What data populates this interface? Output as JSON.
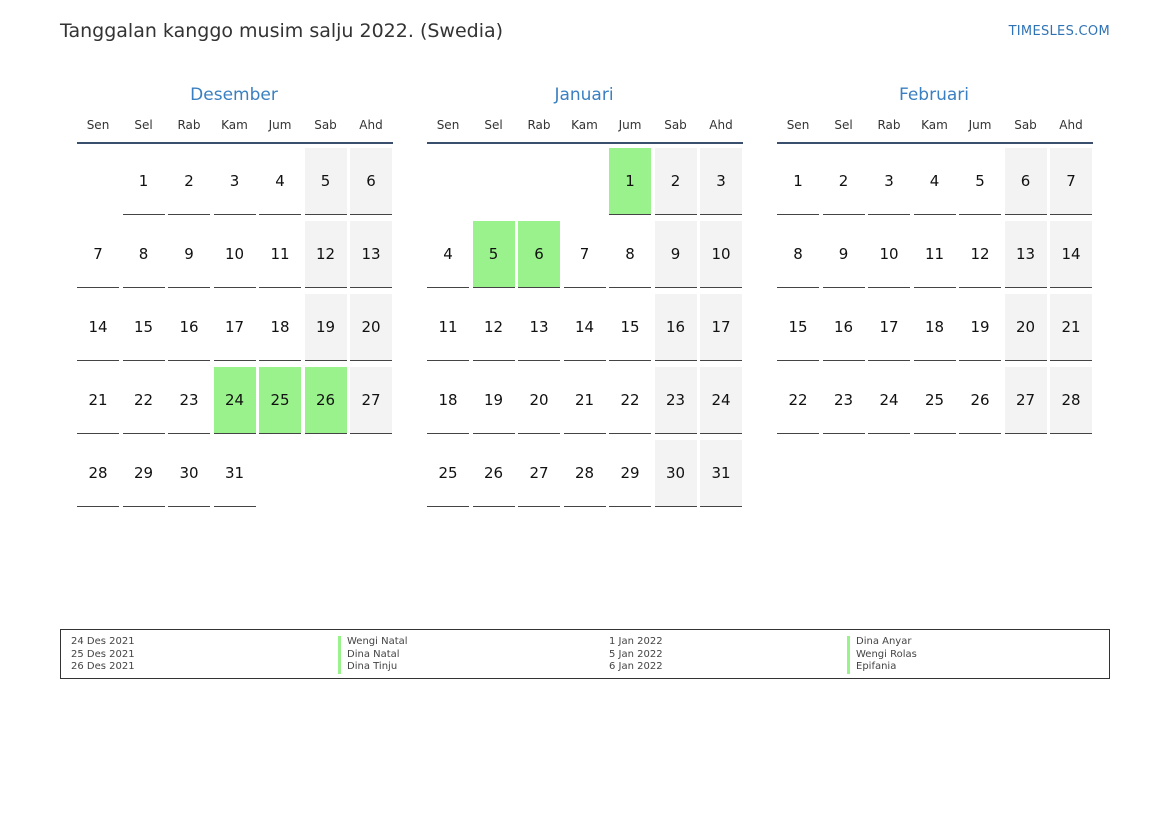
{
  "title": "Tanggalan kanggo musim salju 2022. (Swedia)",
  "brand": "TIMESLES.COM",
  "weekdays": [
    "Sen",
    "Sel",
    "Rab",
    "Kam",
    "Jum",
    "Sab",
    "Ahd"
  ],
  "colors": {
    "holiday": "#99f28b",
    "weekend": "#f3f3f3",
    "accent": "#3a7fc1"
  },
  "months": [
    {
      "name": "Desember",
      "first_weekday": 2,
      "days": 31,
      "holidays": [
        24,
        25,
        26
      ]
    },
    {
      "name": "Januari",
      "first_weekday": 5,
      "days": 31,
      "holidays": [
        1,
        5,
        6
      ]
    },
    {
      "name": "Februari",
      "first_weekday": 1,
      "days": 28,
      "holidays": []
    }
  ],
  "legend": {
    "left": [
      {
        "date": "24 Des 2021",
        "name": "Wengi Natal"
      },
      {
        "date": "25 Des 2021",
        "name": "Dina Natal"
      },
      {
        "date": "26 Des 2021",
        "name": "Dina Tinju"
      }
    ],
    "right": [
      {
        "date": "1 Jan 2022",
        "name": "Dina Anyar"
      },
      {
        "date": "5 Jan 2022",
        "name": "Wengi Rolas"
      },
      {
        "date": "6 Jan 2022",
        "name": "Epifania"
      }
    ]
  }
}
